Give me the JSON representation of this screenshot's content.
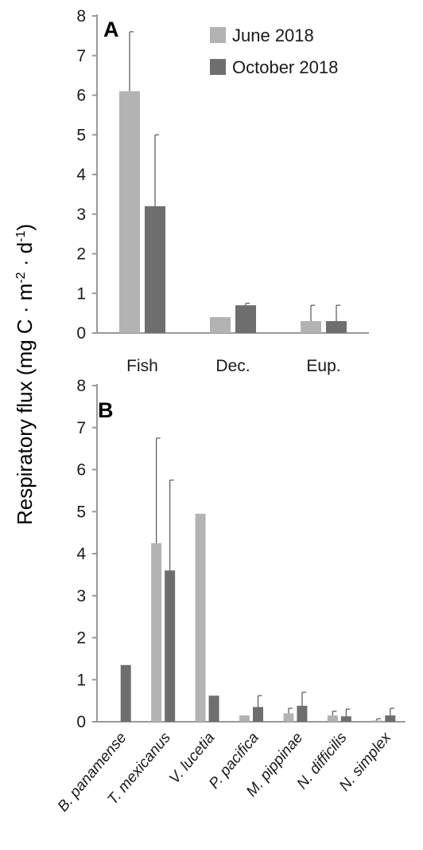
{
  "ylabel_main": "Respiratory flux (mg C · m",
  "ylabel_sup1": "-2",
  "ylabel_mid": " · d",
  "ylabel_sup2": "-1",
  "ylabel_end": ")",
  "colors": {
    "june": "#b3b3b3",
    "october": "#6e6e6e",
    "axis": "#999999",
    "error": "#555555"
  },
  "chart_data": [
    {
      "type": "bar",
      "panel_label": "A",
      "categories": [
        "Fish",
        "Dec.",
        "Eup."
      ],
      "series": [
        {
          "name": "June 2018",
          "values": [
            6.1,
            0.4,
            0.3
          ],
          "errors": [
            1.5,
            0.0,
            0.4
          ]
        },
        {
          "name": "October 2018",
          "values": [
            3.2,
            0.7,
            0.3
          ],
          "errors": [
            1.8,
            0.05,
            0.4
          ]
        }
      ],
      "ylim": [
        0,
        8
      ],
      "yticks": [
        0,
        1,
        2,
        3,
        4,
        5,
        6,
        7,
        8
      ],
      "legend": "top-right",
      "grid": false
    },
    {
      "type": "bar",
      "panel_label": "B",
      "categories": [
        "B. panamense",
        "T. mexicanus",
        "V. lucetia",
        "P. pacifica",
        "M. pippinae",
        "N. difficilis",
        "N. simplex"
      ],
      "series": [
        {
          "values": [
            0,
            4.25,
            4.95,
            0.15,
            0.2,
            0.15,
            0.03
          ],
          "errors": [
            0,
            2.5,
            0,
            0,
            0.12,
            0.1,
            0.04
          ]
        },
        {
          "values": [
            1.35,
            3.6,
            0.62,
            0.35,
            0.38,
            0.13,
            0.15
          ],
          "errors": [
            0,
            2.15,
            0,
            0.27,
            0.32,
            0.17,
            0.17
          ]
        }
      ],
      "ylim": [
        0,
        8
      ],
      "yticks": [
        0,
        1,
        2,
        3,
        4,
        5,
        6,
        7,
        8
      ],
      "grid": false
    }
  ]
}
